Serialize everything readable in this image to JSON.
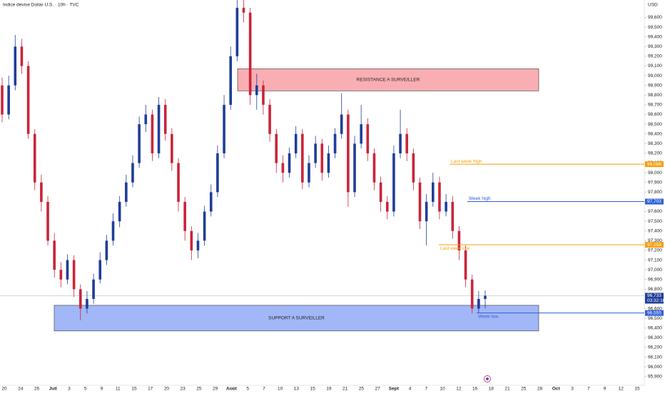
{
  "chart_data": {
    "type": "candlestick",
    "title": "Indice devise Dollar U.S. · 10h · TVC",
    "currency": "USD",
    "up_color": "#1f3d99",
    "down_color": "#c9243a",
    "ylim": [
      95810,
      99780
    ],
    "yticks": [
      {
        "value": 95900,
        "label": "95,900"
      },
      {
        "value": 96000,
        "label": "96,000"
      },
      {
        "value": 96100,
        "label": "96,100"
      },
      {
        "value": 96200,
        "label": "96,200"
      },
      {
        "value": 96300,
        "label": "96,300"
      },
      {
        "value": 96400,
        "label": "96,400"
      },
      {
        "value": 96500,
        "label": "96,500"
      },
      {
        "value": 96600,
        "label": "96,600"
      },
      {
        "value": 96700,
        "label": "96,700"
      },
      {
        "value": 96800,
        "label": "96,800"
      },
      {
        "value": 96900,
        "label": "96,900"
      },
      {
        "value": 97000,
        "label": "97,000"
      },
      {
        "value": 97100,
        "label": "97,100"
      },
      {
        "value": 97200,
        "label": "97,200"
      },
      {
        "value": 97300,
        "label": "97,300"
      },
      {
        "value": 97400,
        "label": "97,400"
      },
      {
        "value": 97500,
        "label": "97,500"
      },
      {
        "value": 97600,
        "label": "97,600"
      },
      {
        "value": 97700,
        "label": "97,700"
      },
      {
        "value": 97800,
        "label": "97,800"
      },
      {
        "value": 97900,
        "label": "97,900"
      },
      {
        "value": 98000,
        "label": "98,000"
      },
      {
        "value": 98100,
        "label": "98,100"
      },
      {
        "value": 98200,
        "label": "98,200"
      },
      {
        "value": 98300,
        "label": "98,300"
      },
      {
        "value": 98400,
        "label": "98,400"
      },
      {
        "value": 98500,
        "label": "98,500"
      },
      {
        "value": 98600,
        "label": "98,600"
      },
      {
        "value": 98700,
        "label": "98,700"
      },
      {
        "value": 98800,
        "label": "98,800"
      },
      {
        "value": 98900,
        "label": "98,900"
      },
      {
        "value": 99000,
        "label": "99,000"
      },
      {
        "value": 99100,
        "label": "99,100"
      },
      {
        "value": 99200,
        "label": "99,200"
      },
      {
        "value": 99300,
        "label": "99,300"
      },
      {
        "value": 99400,
        "label": "99,400"
      },
      {
        "value": 99500,
        "label": "99,500"
      },
      {
        "value": 99600,
        "label": "99,600"
      }
    ],
    "x_labels": [
      "20",
      "24",
      "26",
      "Juil",
      "3",
      "5",
      "9",
      "11",
      "15",
      "17",
      "20",
      "23",
      "25",
      "29",
      "Août",
      "5",
      "7",
      "10",
      "13",
      "15",
      "19",
      "21",
      "25",
      "27",
      "Sept",
      "4",
      "7",
      "10",
      "12",
      "16",
      "18",
      "21",
      "25",
      "28",
      "Oct",
      "3",
      "7",
      "9",
      "12",
      "15"
    ],
    "open": [
      98900,
      98600,
      98900,
      99300,
      99100,
      98400,
      97900,
      97700,
      97300,
      97000,
      96900,
      97100,
      96800,
      96600,
      96700,
      96900,
      97100,
      97300,
      97500,
      97700,
      97900,
      98100,
      98500,
      98600,
      98200,
      98700,
      98400,
      98100,
      97700,
      97400,
      97200,
      97300,
      97600,
      97800,
      98200,
      98700,
      99200,
      99700,
      99650,
      98800,
      98900,
      98700,
      98400,
      98100,
      98000,
      98200,
      98400,
      97900,
      98100,
      98300,
      98000,
      98200,
      98400,
      98600,
      97800,
      98300,
      98500,
      98200,
      97900,
      97700,
      97600,
      98200,
      98400,
      98200,
      97900,
      97500,
      97700,
      97900,
      97600,
      97700,
      97400,
      97200,
      96900,
      96600,
      96700
    ],
    "high": [
      98980,
      99000,
      99420,
      99380,
      99150,
      98450,
      97980,
      97760,
      97380,
      97080,
      97160,
      97150,
      96850,
      96780,
      96960,
      97180,
      97360,
      97580,
      97760,
      97980,
      98180,
      98580,
      98700,
      98650,
      98780,
      98760,
      98460,
      98150,
      97750,
      97450,
      97380,
      97660,
      97880,
      98280,
      98800,
      99300,
      99780,
      99780,
      99700,
      99020,
      98950,
      98760,
      98450,
      98180,
      98260,
      98480,
      98450,
      98180,
      98380,
      98350,
      98280,
      98460,
      98820,
      98650,
      98380,
      98700,
      98560,
      98250,
      97960,
      97760,
      98280,
      98650,
      98460,
      98250,
      97950,
      97780,
      98000,
      97960,
      97780,
      97760,
      97450,
      97250,
      96950,
      96780,
      96790
    ],
    "low": [
      98520,
      98550,
      98850,
      99020,
      98350,
      97820,
      97600,
      97250,
      96920,
      96820,
      96850,
      96720,
      96480,
      96550,
      96650,
      96860,
      97050,
      97250,
      97440,
      97650,
      97850,
      98050,
      98420,
      98120,
      98150,
      98330,
      98020,
      97600,
      97300,
      97100,
      97120,
      97250,
      97550,
      97750,
      98150,
      98650,
      99150,
      99550,
      98700,
      98650,
      98600,
      98320,
      98000,
      97900,
      97950,
      98150,
      97830,
      97850,
      98050,
      97920,
      97950,
      98150,
      98350,
      97650,
      97750,
      98250,
      98120,
      97820,
      97600,
      97520,
      97550,
      98150,
      98120,
      97820,
      97420,
      97250,
      97650,
      97520,
      97550,
      97320,
      97100,
      96820,
      96550,
      96560,
      96600
    ],
    "close": [
      98600,
      98900,
      99300,
      99100,
      98400,
      97900,
      97700,
      97300,
      97000,
      96900,
      97100,
      96800,
      96600,
      96700,
      96900,
      97100,
      97300,
      97500,
      97700,
      97900,
      98100,
      98500,
      98600,
      98200,
      98700,
      98400,
      98100,
      97700,
      97400,
      97200,
      97300,
      97600,
      97800,
      98200,
      98700,
      99200,
      99700,
      99650,
      98800,
      98900,
      98700,
      98400,
      98100,
      98000,
      98200,
      98400,
      97900,
      98100,
      98300,
      98000,
      98200,
      98400,
      98600,
      97800,
      98300,
      98500,
      98200,
      97900,
      97700,
      97600,
      98200,
      98400,
      98200,
      97900,
      97500,
      97700,
      97900,
      97600,
      97700,
      97400,
      97200,
      96900,
      96600,
      96700,
      96733
    ],
    "zones": [
      {
        "name": "RESISTANCE A SURVEILLER",
        "low": 98844,
        "high": 99071,
        "color": "#f8a0a6"
      },
      {
        "name": "SUPPORT A SURVEILLER",
        "low": 96370,
        "high": 96634,
        "color": "#92aaf7"
      }
    ],
    "levels": [
      {
        "name": "Last week high",
        "value": 98088,
        "label": "98,088",
        "color": "#f59e0b"
      },
      {
        "name": "Week high",
        "value": 97703,
        "label": "97,703",
        "color": "#2f5fd8"
      },
      {
        "name": "Last week low",
        "value": 97258,
        "label": "97,258",
        "color": "#f59e0b"
      },
      {
        "name": "Week low",
        "value": 96555,
        "label": "96,555",
        "color": "#2f5fd8"
      }
    ],
    "last_price": {
      "value": 96733,
      "label": "96,733",
      "countdown": "03:32:16",
      "color": "#1f3d99"
    }
  }
}
